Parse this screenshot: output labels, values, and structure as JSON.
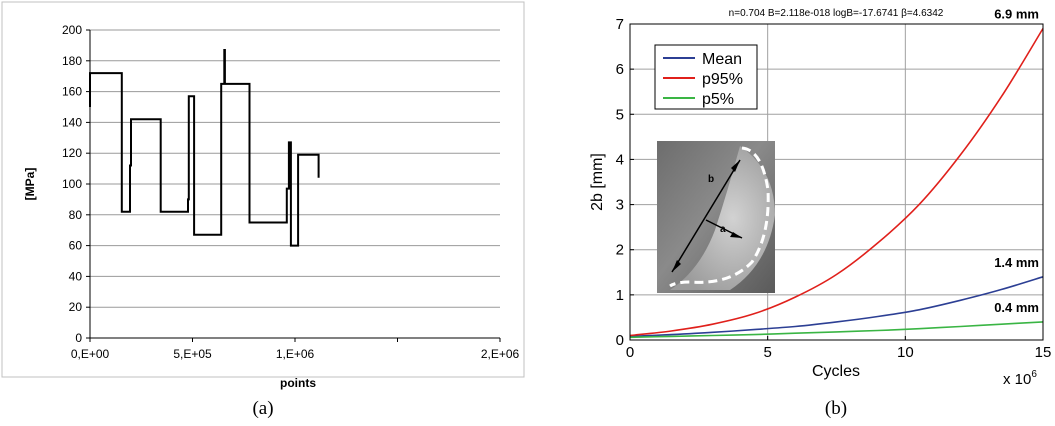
{
  "chart_data": [
    {
      "type": "line",
      "title": "",
      "xlabel": "points",
      "ylabel": "[MPa]",
      "caption": "(a)",
      "xlim": [
        0,
        2000000
      ],
      "ylim": [
        0,
        200
      ],
      "y_ticks": [
        0,
        20,
        40,
        60,
        80,
        100,
        120,
        140,
        160,
        180,
        200
      ],
      "x_tick_values": [
        0,
        500000,
        1000000,
        1500000,
        2000000
      ],
      "x_tick_labels": [
        "0,E+00",
        "5,E+05",
        "1,E+06",
        "",
        "2,E+06"
      ],
      "grid": "horizontal",
      "legend": "none",
      "line_color": "#000000",
      "series": [
        {
          "x": [
            0,
            0,
            5000,
            155000,
            155000,
            195000,
            195000,
            200000,
            200000,
            345000,
            345000,
            478000,
            478000,
            482000,
            482000,
            508000,
            508000,
            640000,
            640000,
            655000,
            655000,
            658000,
            658000,
            778000,
            778000,
            960000,
            960000,
            970000,
            970000,
            980000,
            980000,
            990000,
            990000,
            1015000,
            1015000,
            1115000,
            1115000
          ],
          "y": [
            150,
            172,
            172,
            172,
            82,
            82,
            112,
            112,
            142,
            142,
            82,
            82,
            90,
            90,
            157,
            157,
            67,
            67,
            165,
            165,
            187,
            187,
            165,
            165,
            75,
            75,
            97,
            97,
            127,
            127,
            60,
            60,
            60,
            60,
            119,
            119,
            104
          ]
        }
      ]
    },
    {
      "type": "line",
      "title": "n=0.704 B=2.118e-018 logB=-17.6741 β=4.6342",
      "xlabel": "Cycles",
      "x_multiplier": "x 10",
      "x_multiplier_exp": "6",
      "ylabel": "2b [mm]",
      "caption": "(b)",
      "xlim": [
        0,
        15
      ],
      "ylim": [
        0,
        7
      ],
      "x_ticks": [
        0,
        5,
        10,
        15
      ],
      "y_ticks": [
        0,
        1,
        2,
        3,
        4,
        5,
        6,
        7
      ],
      "grid": true,
      "legend": "top-left",
      "series": [
        {
          "name": "Mean",
          "color": "#2c3f94",
          "x": [
            0,
            1.5,
            3,
            4.5,
            6,
            7.5,
            9,
            10.5,
            12,
            13.5,
            15
          ],
          "y": [
            0.08,
            0.12,
            0.17,
            0.23,
            0.3,
            0.4,
            0.52,
            0.67,
            0.88,
            1.12,
            1.4
          ]
        },
        {
          "name": "p95%",
          "color": "#e0201b",
          "x": [
            0,
            1.5,
            3,
            4.5,
            6,
            7.5,
            9,
            10.5,
            12,
            13.5,
            15
          ],
          "y": [
            0.1,
            0.2,
            0.35,
            0.58,
            0.95,
            1.45,
            2.15,
            3.0,
            4.1,
            5.4,
            6.9
          ]
        },
        {
          "name": "p5%",
          "color": "#3ab544",
          "x": [
            0,
            1.5,
            3,
            4.5,
            6,
            7.5,
            9,
            10.5,
            12,
            13.5,
            15
          ],
          "y": [
            0.06,
            0.08,
            0.1,
            0.12,
            0.15,
            0.18,
            0.21,
            0.25,
            0.3,
            0.35,
            0.4
          ]
        }
      ],
      "annotations": [
        {
          "text": "6.9 mm",
          "x": 15,
          "y": 6.9
        },
        {
          "text": "1.4 mm",
          "x": 15,
          "y": 1.4
        },
        {
          "text": "0.4 mm",
          "x": 15,
          "y": 0.4
        }
      ],
      "inset": {
        "description_icon": "fracture-surface-photo",
        "labels": [
          "b",
          "a"
        ]
      }
    }
  ]
}
